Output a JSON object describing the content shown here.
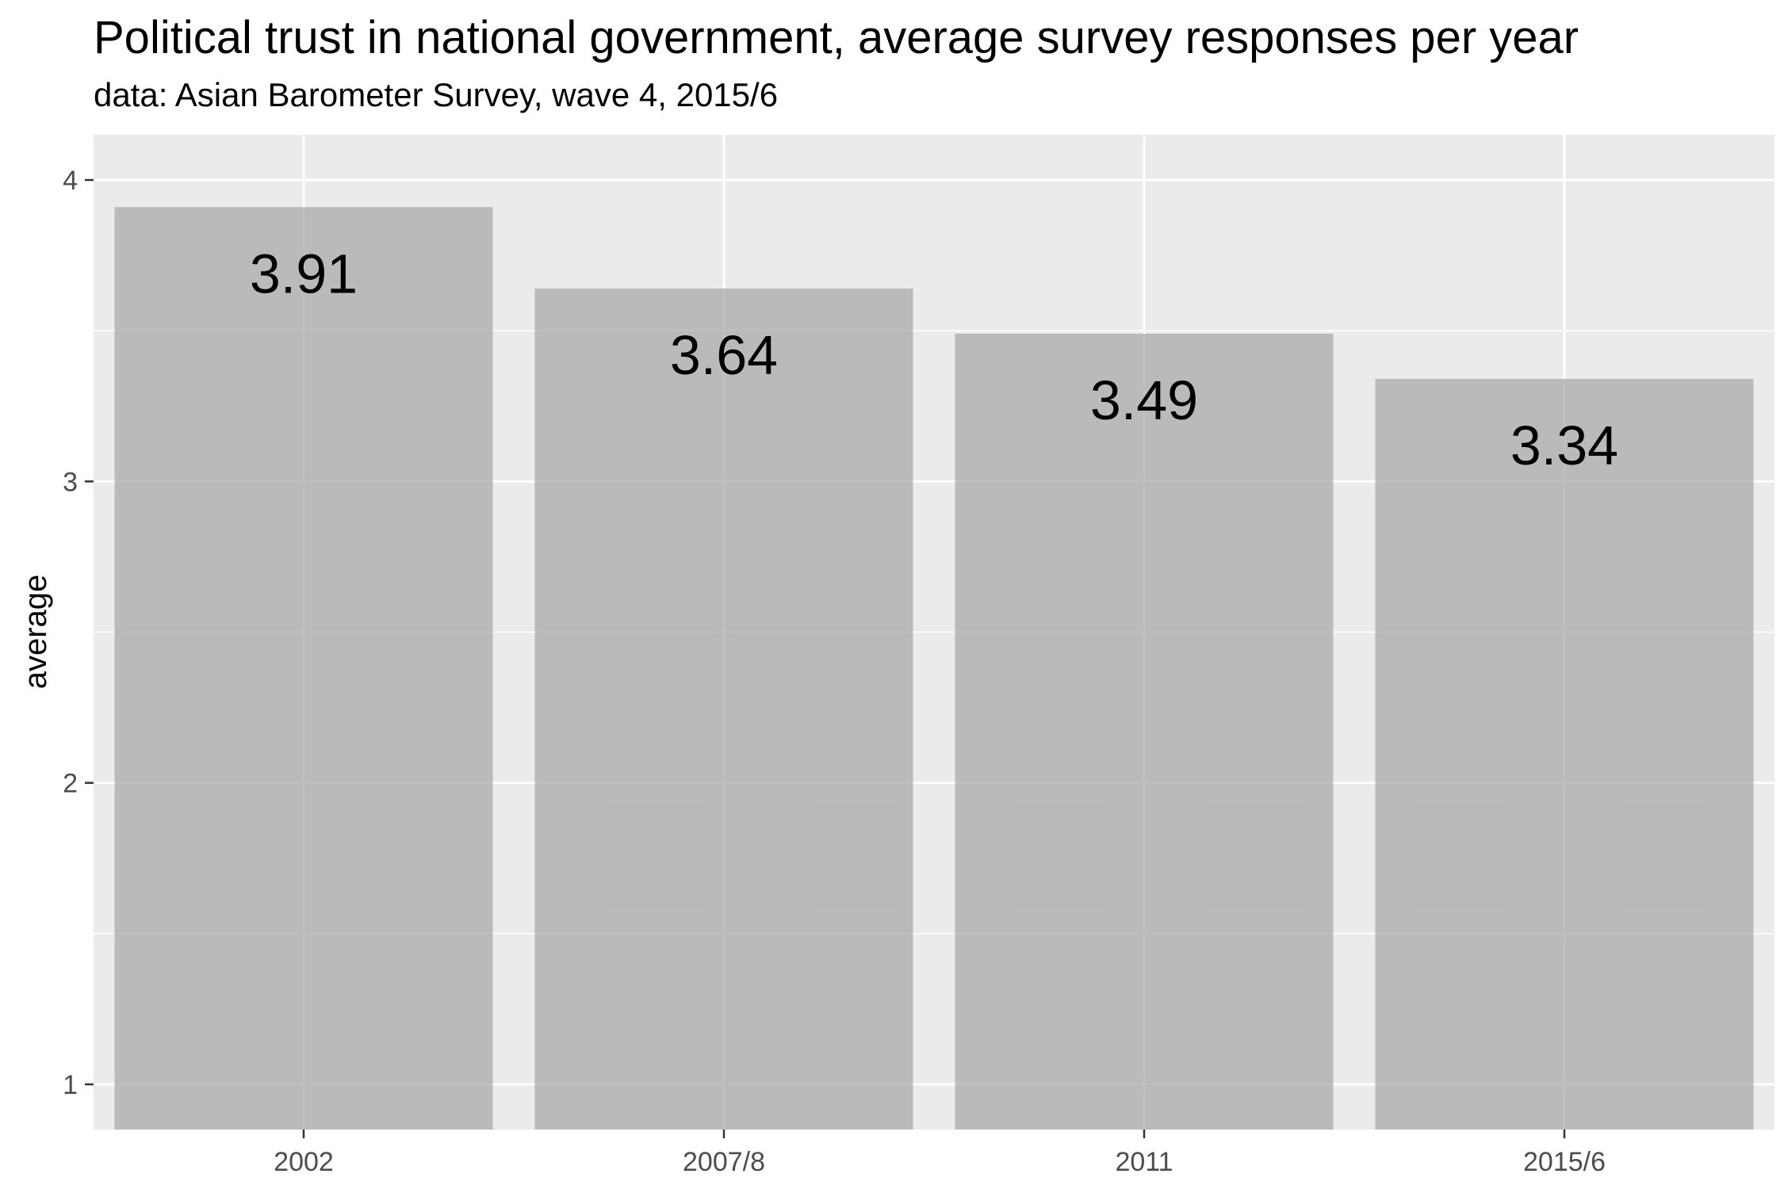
{
  "chart_data": {
    "type": "bar",
    "title": "Political trust in national government, average survey responses per year",
    "subtitle": "data: Asian Barometer Survey, wave 4, 2015/6",
    "xlabel": "",
    "ylabel": "average",
    "categories": [
      "2002",
      "2007/8",
      "2011",
      "2015/6"
    ],
    "values": [
      3.91,
      3.64,
      3.49,
      3.34
    ],
    "data_labels": [
      "3.91",
      "3.64",
      "3.49",
      "3.34"
    ],
    "y_ticks": [
      1,
      2,
      3,
      4
    ],
    "ylim": [
      0.85,
      4.15
    ],
    "grid": true,
    "legend": "none",
    "colors": {
      "panel": "#ebebeb",
      "bar": "#b8b8b8",
      "grid": "#ffffff",
      "tick": "#4d4d4d",
      "text": "#000000"
    }
  }
}
